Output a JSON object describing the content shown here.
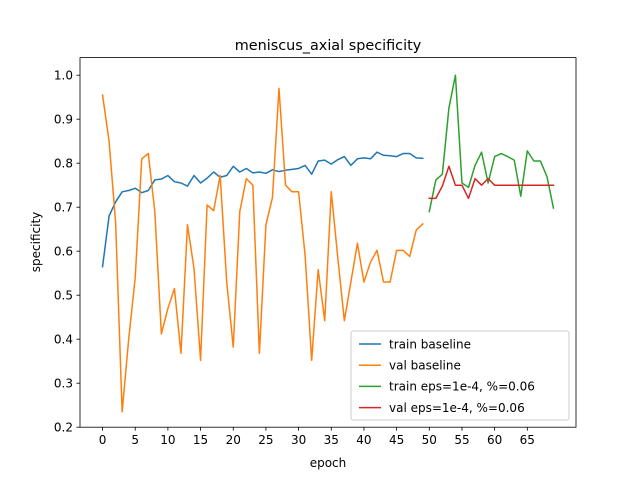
{
  "chart_data": {
    "type": "line",
    "title": "meniscus_axial specificity",
    "xlabel": "epoch",
    "ylabel": "specificity",
    "xlim": [
      -3.45,
      72.45
    ],
    "ylim": [
      0.2,
      1.04
    ],
    "xticks": [
      0,
      5,
      10,
      15,
      20,
      25,
      30,
      35,
      40,
      45,
      50,
      55,
      60,
      65
    ],
    "yticks": [
      0.2,
      0.3,
      0.4,
      0.5,
      0.6,
      0.7,
      0.8,
      0.9,
      1.0
    ],
    "ytick_labels": [
      "0.2",
      "0.3",
      "0.4",
      "0.5",
      "0.6",
      "0.7",
      "0.8",
      "0.9",
      "1.0"
    ],
    "grid": false,
    "legend_position": "lower right",
    "series": [
      {
        "name": "train baseline",
        "color": "#1f77b4",
        "x": [
          0,
          1,
          2,
          3,
          4,
          5,
          6,
          7,
          8,
          9,
          10,
          11,
          12,
          13,
          14,
          15,
          16,
          17,
          18,
          19,
          20,
          21,
          22,
          23,
          24,
          25,
          26,
          27,
          28,
          29,
          30,
          31,
          32,
          33,
          34,
          35,
          36,
          37,
          38,
          39,
          40,
          41,
          42,
          43,
          44,
          45,
          46,
          47,
          48,
          49
        ],
        "y": [
          0.565,
          0.68,
          0.712,
          0.735,
          0.738,
          0.743,
          0.733,
          0.738,
          0.762,
          0.764,
          0.772,
          0.758,
          0.755,
          0.748,
          0.772,
          0.755,
          0.766,
          0.78,
          0.768,
          0.772,
          0.793,
          0.78,
          0.788,
          0.778,
          0.78,
          0.777,
          0.785,
          0.781,
          0.784,
          0.786,
          0.788,
          0.795,
          0.775,
          0.805,
          0.807,
          0.798,
          0.808,
          0.815,
          0.795,
          0.81,
          0.812,
          0.81,
          0.825,
          0.818,
          0.817,
          0.815,
          0.822,
          0.822,
          0.812,
          0.811
        ]
      },
      {
        "name": "val baseline",
        "color": "#ff7f0e",
        "x": [
          0,
          1,
          2,
          3,
          4,
          5,
          6,
          7,
          8,
          9,
          10,
          11,
          12,
          13,
          14,
          15,
          16,
          17,
          18,
          19,
          20,
          21,
          22,
          23,
          24,
          25,
          26,
          27,
          28,
          29,
          30,
          31,
          32,
          33,
          34,
          35,
          36,
          37,
          38,
          39,
          40,
          41,
          42,
          43,
          44,
          45,
          46,
          47,
          48,
          49
        ],
        "y": [
          0.955,
          0.85,
          0.665,
          0.235,
          0.4,
          0.54,
          0.81,
          0.822,
          0.69,
          0.412,
          0.47,
          0.515,
          0.368,
          0.66,
          0.56,
          0.352,
          0.705,
          0.692,
          0.772,
          0.53,
          0.382,
          0.69,
          0.765,
          0.75,
          0.368,
          0.66,
          0.722,
          0.97,
          0.75,
          0.735,
          0.735,
          0.59,
          0.352,
          0.558,
          0.442,
          0.735,
          0.585,
          0.442,
          0.53,
          0.618,
          0.53,
          0.575,
          0.602,
          0.53,
          0.53,
          0.602,
          0.602,
          0.588,
          0.648,
          0.662
        ]
      },
      {
        "name": "train eps=1e-4, %=0.06",
        "color": "#2ca02c",
        "x": [
          50,
          51,
          52,
          53,
          54,
          55,
          56,
          57,
          58,
          59,
          60,
          61,
          62,
          63,
          64,
          65,
          66,
          67,
          68,
          69
        ],
        "y": [
          0.69,
          0.762,
          0.775,
          0.925,
          1.0,
          0.755,
          0.745,
          0.795,
          0.825,
          0.755,
          0.815,
          0.822,
          0.815,
          0.807,
          0.725,
          0.828,
          0.805,
          0.805,
          0.77,
          0.698
        ]
      },
      {
        "name": "val eps=1e-4, %=0.06",
        "color": "#d62728",
        "x": [
          50,
          51,
          52,
          53,
          54,
          55,
          56,
          57,
          58,
          59,
          60,
          61,
          62,
          63,
          64,
          65,
          66,
          67,
          68,
          69
        ],
        "y": [
          0.72,
          0.72,
          0.748,
          0.793,
          0.75,
          0.75,
          0.72,
          0.765,
          0.75,
          0.765,
          0.75,
          0.75,
          0.75,
          0.75,
          0.75,
          0.75,
          0.75,
          0.75,
          0.75,
          0.75
        ]
      }
    ]
  }
}
